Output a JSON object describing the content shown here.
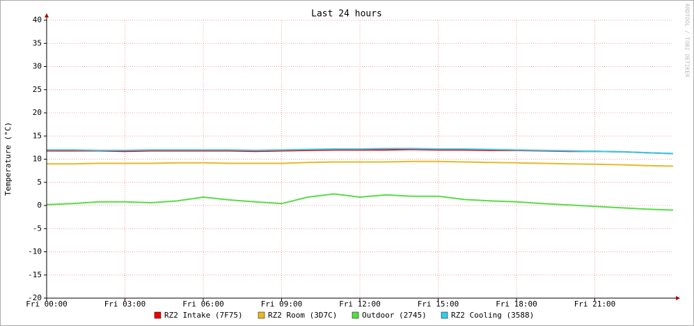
{
  "chart_data": {
    "type": "line",
    "title": "Last 24 hours",
    "y_label": "Temperature (°C)",
    "watermark": "RRDTOOL / TOBI OETIKER",
    "x": [
      0,
      1,
      2,
      3,
      4,
      5,
      6,
      7,
      8,
      9,
      10,
      11,
      12,
      13,
      14,
      15,
      16,
      17,
      18,
      19,
      20,
      21,
      22,
      23,
      24
    ],
    "xlim": [
      0,
      24
    ],
    "xticks": [
      {
        "value": 0,
        "label": "Fri 00:00"
      },
      {
        "value": 3,
        "label": "Fri 03:00"
      },
      {
        "value": 6,
        "label": "Fri 06:00"
      },
      {
        "value": 9,
        "label": "Fri 09:00"
      },
      {
        "value": 12,
        "label": "Fri 12:00"
      },
      {
        "value": 15,
        "label": "Fri 15:00"
      },
      {
        "value": 18,
        "label": "Fri 18:00"
      },
      {
        "value": 21,
        "label": "Fri 21:00"
      }
    ],
    "ylim": [
      -20,
      40
    ],
    "yticks": [
      -20,
      -15,
      -10,
      -5,
      0,
      5,
      10,
      15,
      20,
      25,
      30,
      35,
      40
    ],
    "grid": true,
    "series": [
      {
        "name": "RZ2 Intake (7F75)",
        "color": "#ee0000",
        "values": [
          11.8,
          11.8,
          11.8,
          11.7,
          11.8,
          11.8,
          11.8,
          11.8,
          11.7,
          11.8,
          11.9,
          12.0,
          12.0,
          12.0,
          12.1,
          12.0,
          12.0,
          11.9,
          11.9,
          11.8,
          11.7,
          11.7,
          11.6,
          11.4,
          11.2
        ]
      },
      {
        "name": "RZ2 Room (3D7C)",
        "color": "#e8b828",
        "values": [
          9.0,
          9.0,
          9.1,
          9.1,
          9.1,
          9.2,
          9.2,
          9.1,
          9.1,
          9.1,
          9.3,
          9.4,
          9.4,
          9.4,
          9.5,
          9.5,
          9.4,
          9.3,
          9.2,
          9.1,
          9.0,
          8.9,
          8.8,
          8.6,
          8.5
        ]
      },
      {
        "name": "Outdoor (2745)",
        "color": "#55dd44",
        "values": [
          0.2,
          0.4,
          0.8,
          0.8,
          0.6,
          1.0,
          1.8,
          1.2,
          0.8,
          0.4,
          1.8,
          2.5,
          1.8,
          2.3,
          2.0,
          2.0,
          1.3,
          1.0,
          0.8,
          0.4,
          0.1,
          -0.2,
          -0.5,
          -0.8,
          -1.0
        ]
      },
      {
        "name": "RZ2 Cooling (3588)",
        "color": "#33ccee",
        "values": [
          12.0,
          12.0,
          11.9,
          11.9,
          12.0,
          12.0,
          12.0,
          12.0,
          11.9,
          12.0,
          12.1,
          12.2,
          12.2,
          12.3,
          12.3,
          12.2,
          12.2,
          12.1,
          12.0,
          11.9,
          11.8,
          11.7,
          11.6,
          11.4,
          11.2
        ]
      }
    ]
  }
}
